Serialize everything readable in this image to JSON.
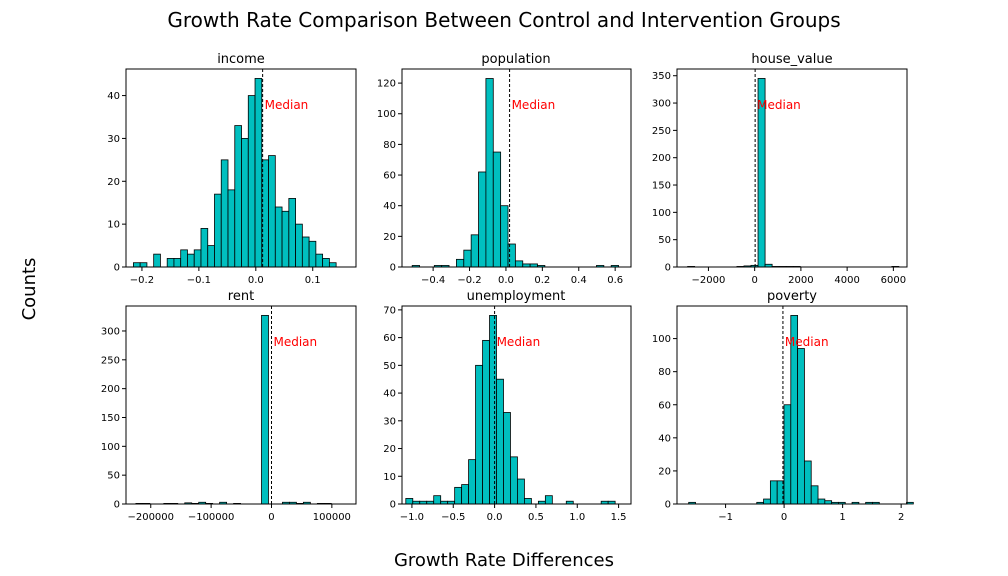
{
  "figure": {
    "title": "Growth Rate Comparison Between Control and Intervention Groups",
    "xlabel": "Growth Rate Differences",
    "ylabel": "Counts",
    "median_annotation": "Median"
  },
  "colors": {
    "bar_fill": "#00bfbf",
    "bar_edge": "#000000",
    "median_line": "#000000",
    "median_text": "#ff0000"
  },
  "chart_data": [
    {
      "type": "bar",
      "title": "income",
      "bin_start": -0.215,
      "bin_width": 0.01187,
      "values": [
        1,
        1,
        0,
        3,
        0,
        2,
        2,
        4,
        3,
        4,
        9,
        5,
        17,
        25,
        18,
        33,
        30,
        40,
        44,
        25,
        26,
        14,
        13,
        16,
        10,
        7,
        6,
        3,
        2,
        1
      ],
      "median": 0.012,
      "xlim": [
        -0.228,
        0.176
      ],
      "ylim": [
        0,
        46.2
      ],
      "xticks": [
        -0.2,
        -0.1,
        0.0,
        0.1
      ],
      "xtick_labels": [
        "−0.2",
        "−0.1",
        "0.0",
        "0.1"
      ],
      "yticks": [
        0,
        10,
        20,
        30,
        40
      ],
      "ytick_labels": [
        "0",
        "10",
        "20",
        "30",
        "40"
      ]
    },
    {
      "type": "bar",
      "title": "population",
      "bin_start": -0.515,
      "bin_width": 0.04049,
      "values": [
        1,
        0,
        0,
        1,
        1,
        0,
        5,
        11,
        21,
        62,
        123,
        75,
        40,
        15,
        4,
        2,
        2,
        1,
        0,
        0,
        0,
        0,
        0,
        0,
        0,
        1,
        0,
        1
      ],
      "median": 0.02,
      "xlim": [
        -0.571,
        0.687
      ],
      "ylim": [
        0,
        129.2
      ],
      "xticks": [
        -0.4,
        -0.2,
        0.0,
        0.2,
        0.4,
        0.6
      ],
      "xtick_labels": [
        "−0.4",
        "−0.2",
        "0.0",
        "0.2",
        "0.4",
        "0.6"
      ],
      "yticks": [
        0,
        20,
        40,
        60,
        80,
        100,
        120
      ],
      "ytick_labels": [
        "0",
        "20",
        "40",
        "60",
        "80",
        "100",
        "120"
      ]
    },
    {
      "type": "bar",
      "title": "house_value",
      "bin_start": -2900,
      "bin_width": 304.6,
      "values": [
        1,
        0,
        0,
        0,
        0,
        0,
        0,
        1,
        2,
        3,
        345,
        5,
        1,
        1,
        1,
        1,
        0,
        0,
        0,
        0,
        0,
        0,
        0,
        0,
        0,
        0,
        0,
        0,
        0,
        1
      ],
      "median": 20,
      "xlim": [
        -3360,
        6590
      ],
      "ylim": [
        0,
        362.3
      ],
      "xticks": [
        -2000,
        0,
        2000,
        4000,
        6000
      ],
      "xtick_labels": [
        "−2000",
        "0",
        "2000",
        "4000",
        "6000"
      ],
      "yticks": [
        0,
        50,
        100,
        150,
        200,
        250,
        300,
        350
      ],
      "ytick_labels": [
        "0",
        "50",
        "100",
        "150",
        "200",
        "250",
        "300",
        "350"
      ]
    },
    {
      "type": "bar",
      "title": "rent",
      "bin_start": -224600,
      "bin_width": 11560,
      "values": [
        1,
        1,
        0,
        0,
        1,
        1,
        0,
        2,
        1,
        3,
        1,
        0,
        3,
        0,
        1,
        0,
        0,
        0,
        327,
        0,
        0,
        3,
        3,
        1,
        3,
        0,
        1,
        1
      ],
      "median": 0,
      "xlim": [
        -241000,
        140000
      ],
      "ylim": [
        0,
        343.3
      ],
      "xticks": [
        -200000,
        -100000,
        0,
        100000
      ],
      "xtick_labels": [
        "−200000",
        "−100000",
        "0",
        "100000"
      ],
      "yticks": [
        0,
        50,
        100,
        150,
        200,
        250,
        300
      ],
      "ytick_labels": [
        "0",
        "50",
        "100",
        "150",
        "200",
        "250",
        "300"
      ]
    },
    {
      "type": "bar",
      "title": "unemployment",
      "bin_start": -1.074,
      "bin_width": 0.0844,
      "values": [
        2,
        1,
        1,
        1,
        3,
        1,
        1,
        6,
        7,
        16,
        50,
        59,
        68,
        45,
        33,
        17,
        9,
        2,
        0,
        1,
        3,
        0,
        0,
        1,
        0,
        0,
        0,
        0,
        1,
        1
      ],
      "median": 0.0,
      "xlim": [
        -1.12,
        1.65
      ],
      "ylim": [
        0,
        71.4
      ],
      "xticks": [
        -1.0,
        -0.5,
        0.0,
        0.5,
        1.0,
        1.5
      ],
      "xtick_labels": [
        "−1.0",
        "−0.5",
        "0.0",
        "0.5",
        "1.0",
        "1.5"
      ],
      "yticks": [
        0,
        10,
        20,
        30,
        40,
        50,
        60,
        70
      ],
      "ytick_labels": [
        "0",
        "10",
        "20",
        "30",
        "40",
        "50",
        "60",
        "70"
      ]
    },
    {
      "type": "bar",
      "title": "poverty",
      "bin_start": -1.63,
      "bin_width": 0.1163,
      "values": [
        1,
        0,
        0,
        0,
        0,
        0,
        0,
        0,
        0,
        0,
        1,
        3,
        14,
        14,
        60,
        114,
        94,
        26,
        11,
        3,
        2,
        1,
        1,
        0,
        1,
        0,
        1,
        1,
        0,
        0,
        0,
        0,
        1
      ],
      "median": -0.02,
      "xlim": [
        -1.83,
        2.1
      ],
      "ylim": [
        0,
        119.7
      ],
      "xticks": [
        -1,
        0,
        1,
        2
      ],
      "xtick_labels": [
        "−1",
        "0",
        "1",
        "2"
      ],
      "yticks": [
        0,
        20,
        40,
        60,
        80,
        100
      ],
      "ytick_labels": [
        "0",
        "20",
        "40",
        "60",
        "80",
        "100"
      ]
    }
  ]
}
